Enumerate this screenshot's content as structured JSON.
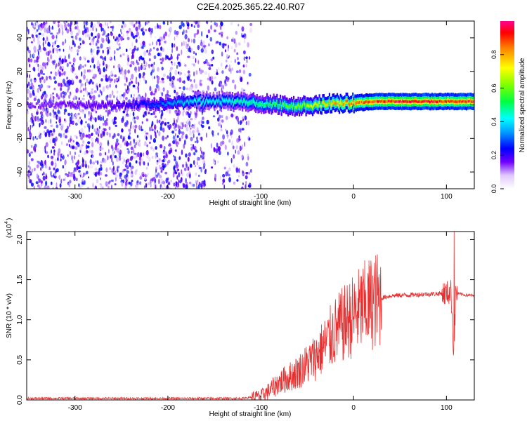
{
  "figure": {
    "title": "C2E4.2025.365.22.40.R07"
  },
  "chart_data": [
    {
      "type": "heatmap",
      "title": "",
      "xlabel": "Height of straight line (km)",
      "ylabel": "Frequency (Hz)",
      "xlim": [
        -352,
        130
      ],
      "ylim": [
        -50,
        50
      ],
      "xticks": [
        -300,
        -200,
        -100,
        0,
        100
      ],
      "yticks": [
        -40,
        -20,
        0,
        20,
        40
      ],
      "description_series": [
        {
          "x": [
            -350,
            -250,
            -180,
            -170,
            -150,
            -120,
            -100,
            -80,
            -60,
            -40,
            -20,
            0,
            20,
            40,
            60,
            80,
            100,
            130
          ],
          "center_frequency": [
            0,
            0,
            1,
            2,
            2,
            2,
            1,
            0,
            -1,
            0,
            1,
            1,
            2,
            2,
            2,
            2,
            2,
            2
          ],
          "peak_amplitude": [
            0.15,
            0.2,
            0.4,
            0.45,
            0.45,
            0.5,
            0.55,
            0.6,
            0.65,
            0.75,
            0.85,
            0.9,
            0.95,
            1.0,
            1.0,
            1.0,
            0.95,
            1.0
          ]
        }
      ],
      "noise_extent_x": [
        -352,
        -110
      ],
      "colorbar": {
        "label": "Normalized spectral amplitude",
        "range": [
          0,
          1
        ],
        "ticks": [
          0.0,
          0.2,
          0.4,
          0.6,
          0.8
        ]
      }
    },
    {
      "type": "line",
      "title": "",
      "xlabel": "Height of straight line (km)",
      "ylabel": "SNR (10 * v/v)",
      "scale_label": "(x10",
      "scale_exp": "4",
      "scale_close": ")",
      "xlim": [
        -352,
        130
      ],
      "ylim": [
        0,
        2.1
      ],
      "xticks": [
        -300,
        -200,
        -100,
        0,
        100
      ],
      "yticks": [
        0.0,
        0.5,
        1.0,
        1.5,
        2.0
      ],
      "color": "#e83030",
      "series": [
        {
          "x": [
            -352,
            -300,
            -250,
            -200,
            -150,
            -120,
            -100,
            -90,
            -80,
            -70,
            -60,
            -50,
            -40,
            -30,
            -20,
            -10,
            0,
            10,
            20,
            30,
            40,
            60,
            80,
            100,
            105,
            108,
            110,
            120,
            130
          ],
          "values": [
            0.02,
            0.02,
            0.02,
            0.02,
            0.02,
            0.02,
            0.05,
            0.12,
            0.22,
            0.28,
            0.35,
            0.45,
            0.55,
            0.7,
            0.85,
            0.95,
            1.05,
            1.15,
            1.22,
            1.27,
            1.3,
            1.31,
            1.32,
            1.33,
            1.35,
            0.55,
            1.33,
            1.31,
            1.3
          ]
        }
      ]
    }
  ]
}
